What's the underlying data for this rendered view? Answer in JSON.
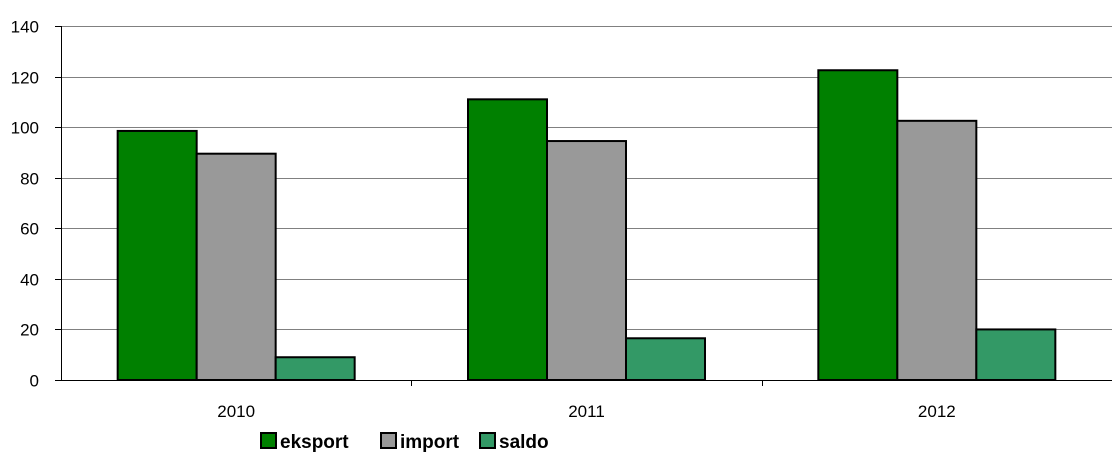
{
  "chart_data": {
    "type": "bar",
    "categories": [
      "2010",
      "2011",
      "2012"
    ],
    "series": [
      {
        "name": "eksport",
        "values": [
          98.5,
          111,
          122.5
        ],
        "color": "#008000"
      },
      {
        "name": "import",
        "values": [
          89.5,
          94.5,
          102.5
        ],
        "color": "#999999"
      },
      {
        "name": "saldo",
        "values": [
          9,
          16.5,
          20
        ],
        "color": "#339966"
      }
    ],
    "ylim": [
      0,
      140
    ],
    "yticks": [
      "0",
      "20",
      "40",
      "60",
      "80",
      "100",
      "120",
      "140"
    ],
    "title": "",
    "xlabel": "",
    "ylabel": "",
    "grid": true,
    "legend_position": "bottom-left"
  }
}
